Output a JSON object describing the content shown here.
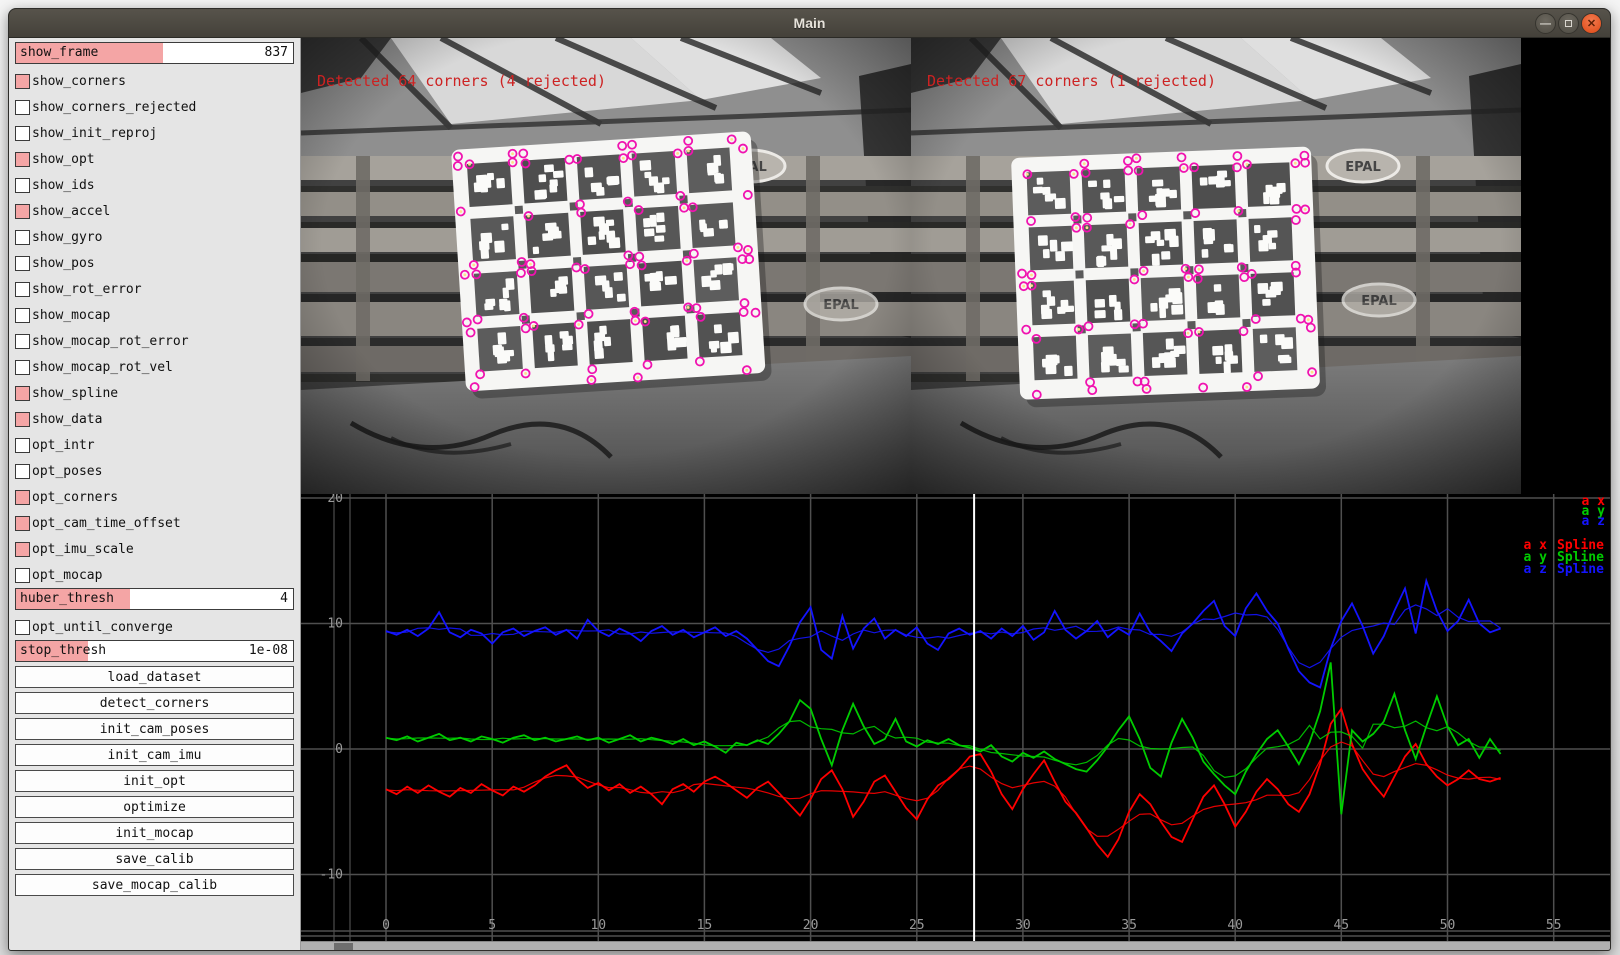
{
  "window": {
    "title": "Main"
  },
  "sidebar": {
    "accent_color": "#f4a5a5",
    "items": [
      {
        "type": "slider",
        "label": "show_frame",
        "value": "837",
        "fill_pct": 53
      },
      {
        "type": "checkbox",
        "label": "show_corners",
        "checked": true
      },
      {
        "type": "checkbox",
        "label": "show_corners_rejected",
        "checked": false
      },
      {
        "type": "checkbox",
        "label": "show_init_reproj",
        "checked": false
      },
      {
        "type": "checkbox",
        "label": "show_opt",
        "checked": true
      },
      {
        "type": "checkbox",
        "label": "show_ids",
        "checked": false
      },
      {
        "type": "checkbox",
        "label": "show_accel",
        "checked": true
      },
      {
        "type": "checkbox",
        "label": "show_gyro",
        "checked": false
      },
      {
        "type": "checkbox",
        "label": "show_pos",
        "checked": false
      },
      {
        "type": "checkbox",
        "label": "show_rot_error",
        "checked": false
      },
      {
        "type": "checkbox",
        "label": "show_mocap",
        "checked": false
      },
      {
        "type": "checkbox",
        "label": "show_mocap_rot_error",
        "checked": false
      },
      {
        "type": "checkbox",
        "label": "show_mocap_rot_vel",
        "checked": false
      },
      {
        "type": "checkbox",
        "label": "show_spline",
        "checked": true
      },
      {
        "type": "checkbox",
        "label": "show_data",
        "checked": true
      },
      {
        "type": "checkbox",
        "label": "opt_intr",
        "checked": false
      },
      {
        "type": "checkbox",
        "label": "opt_poses",
        "checked": false
      },
      {
        "type": "checkbox",
        "label": "opt_corners",
        "checked": true
      },
      {
        "type": "checkbox",
        "label": "opt_cam_time_offset",
        "checked": true
      },
      {
        "type": "checkbox",
        "label": "opt_imu_scale",
        "checked": true
      },
      {
        "type": "checkbox",
        "label": "opt_mocap",
        "checked": false
      },
      {
        "type": "slider",
        "label": "huber_thresh",
        "value": "4",
        "fill_pct": 41
      },
      {
        "type": "checkbox",
        "label": "opt_until_converge",
        "checked": false
      },
      {
        "type": "slider",
        "label": "stop_thresh",
        "value": "1e-08",
        "fill_pct": 26
      },
      {
        "type": "button",
        "label": "load_dataset"
      },
      {
        "type": "button",
        "label": "detect_corners"
      },
      {
        "type": "button",
        "label": "init_cam_poses"
      },
      {
        "type": "button",
        "label": "init_cam_imu"
      },
      {
        "type": "button",
        "label": "init_opt"
      },
      {
        "type": "button",
        "label": "optimize"
      },
      {
        "type": "button",
        "label": "init_mocap"
      },
      {
        "type": "button",
        "label": "save_calib"
      },
      {
        "type": "button",
        "label": "save_mocap_calib"
      }
    ]
  },
  "cameras": [
    {
      "overlay_text": "Detected 64 corners (4 rejected)",
      "overlay_color": "#cd2222"
    },
    {
      "overlay_text": "Detected 67 corners (1 rejected)",
      "overlay_color": "#cd2222"
    }
  ],
  "chart_data": {
    "type": "line",
    "title": "",
    "xlabel": "",
    "ylabel": "",
    "xlim": [
      -4.0,
      57.7
    ],
    "ylim": [
      -15.3,
      20.3
    ],
    "x_ticks": [
      0,
      5,
      10,
      15,
      20,
      25,
      30,
      35,
      40,
      45,
      50,
      55
    ],
    "y_ticks": [
      20,
      10,
      0,
      -10
    ],
    "grid": true,
    "background": "#000000",
    "grid_color": "#4f4f4f",
    "tick_color": "#9a9a9a",
    "cursor_t": 27.7,
    "cursor_color": "#ffffff",
    "legend_position": "top-right",
    "legend_data": [
      "a x",
      "a y",
      "a z"
    ],
    "legend_spline": [
      {
        "name": "a x",
        "suffix": "Spline"
      },
      {
        "name": "a y",
        "suffix": "Spline"
      },
      {
        "name": "a z",
        "suffix": "Spline"
      }
    ],
    "t_start": 0,
    "t_step": 0.5,
    "series": [
      {
        "name": "a x",
        "color": "#ff0000",
        "values": [
          -3.2,
          -3.6,
          -3.0,
          -3.5,
          -2.9,
          -3.4,
          -3.8,
          -3.1,
          -3.5,
          -2.8,
          -3.3,
          -3.7,
          -3.0,
          -3.4,
          -2.9,
          -2.2,
          -1.7,
          -1.3,
          -2.4,
          -3.1,
          -2.7,
          -3.3,
          -2.8,
          -3.5,
          -3.0,
          -3.6,
          -4.4,
          -3.2,
          -2.8,
          -3.4,
          -2.6,
          -2.2,
          -2.7,
          -3.3,
          -3.9,
          -3.1,
          -2.6,
          -3.5,
          -4.4,
          -5.3,
          -4.0,
          -2.4,
          -1.7,
          -3.2,
          -5.4,
          -4.2,
          -2.6,
          -2.1,
          -3.4,
          -4.7,
          -5.6,
          -4.0,
          -2.9,
          -2.4,
          -1.6,
          -0.6,
          -0.4,
          -1.8,
          -3.6,
          -4.8,
          -3.2,
          -2.0,
          -0.9,
          -2.6,
          -4.2,
          -5.1,
          -6.3,
          -7.6,
          -8.6,
          -7.2,
          -5.0,
          -3.6,
          -4.4,
          -5.8,
          -7.0,
          -7.4,
          -5.6,
          -3.8,
          -2.9,
          -4.4,
          -6.2,
          -5.0,
          -3.4,
          -2.4,
          -3.2,
          -4.4,
          -5.0,
          -3.6,
          -1.2,
          2.0,
          3.2,
          0.4,
          -1.6,
          -2.8,
          -3.8,
          -2.2,
          -0.6,
          0.4,
          -1.2,
          -2.2,
          -2.9,
          -2.4,
          -1.7,
          -2.4,
          -2.6,
          -2.3
        ]
      },
      {
        "name": "a y",
        "color": "#00cc00",
        "values": [
          0.9,
          0.7,
          1.0,
          0.6,
          0.9,
          1.2,
          0.7,
          0.9,
          0.6,
          1.0,
          0.8,
          0.5,
          0.9,
          1.1,
          0.7,
          0.9,
          0.6,
          0.8,
          1.0,
          0.7,
          0.9,
          0.5,
          0.8,
          1.1,
          0.6,
          0.9,
          0.7,
          0.4,
          0.8,
          0.3,
          0.6,
          0.2,
          -0.3,
          0.5,
          0.3,
          0.7,
          0.4,
          1.2,
          2.2,
          3.9,
          3.2,
          0.8,
          -1.3,
          1.5,
          3.6,
          1.8,
          0.4,
          0.8,
          2.4,
          0.6,
          0.2,
          0.7,
          0.4,
          0.8,
          0.3,
          0.1,
          -0.2,
          0.3,
          -0.6,
          -1.0,
          -0.3,
          -0.7,
          -0.2,
          -0.8,
          -1.2,
          -1.6,
          -1.8,
          -0.9,
          0.2,
          1.5,
          2.6,
          0.8,
          -1.5,
          -2.2,
          0.5,
          2.4,
          0.9,
          -1.0,
          -2.0,
          -2.9,
          -3.6,
          -1.8,
          -0.4,
          0.8,
          1.5,
          0.2,
          -1.2,
          0.5,
          3.0,
          6.9,
          -5.2,
          1.5,
          0.6,
          1.2,
          2.2,
          4.4,
          1.5,
          -0.8,
          1.8,
          4.2,
          1.8,
          0.3,
          0.8,
          -0.7,
          0.8,
          -0.4
        ]
      },
      {
        "name": "a z",
        "color": "#1414ff",
        "values": [
          9.4,
          9.1,
          9.5,
          9.0,
          9.6,
          10.9,
          9.3,
          8.9,
          9.5,
          9.2,
          8.4,
          9.3,
          9.6,
          9.0,
          9.4,
          9.7,
          9.1,
          9.5,
          8.8,
          10.3,
          9.4,
          9.0,
          9.6,
          9.2,
          8.6,
          9.4,
          9.8,
          9.1,
          9.5,
          8.9,
          9.3,
          9.7,
          9.0,
          9.4,
          8.8,
          7.9,
          7.0,
          6.6,
          8.2,
          10.1,
          11.3,
          7.9,
          7.2,
          10.6,
          8.0,
          9.6,
          10.4,
          8.8,
          9.5,
          9.0,
          9.7,
          8.4,
          7.9,
          9.2,
          9.6,
          9.1,
          9.4,
          8.8,
          9.6,
          9.0,
          9.8,
          8.7,
          9.3,
          11.0,
          9.5,
          8.8,
          9.4,
          10.2,
          8.9,
          9.6,
          9.1,
          10.8,
          9.3,
          8.6,
          7.8,
          9.2,
          10.0,
          11.0,
          11.8,
          9.8,
          9.0,
          11.2,
          12.4,
          11.0,
          10.0,
          8.0,
          6.2,
          5.3,
          4.9,
          8.0,
          10.2,
          11.6,
          9.8,
          7.6,
          9.0,
          11.0,
          12.8,
          9.2,
          13.4,
          11.0,
          9.4,
          10.2,
          11.9,
          10.0,
          9.3,
          9.6
        ]
      }
    ]
  }
}
